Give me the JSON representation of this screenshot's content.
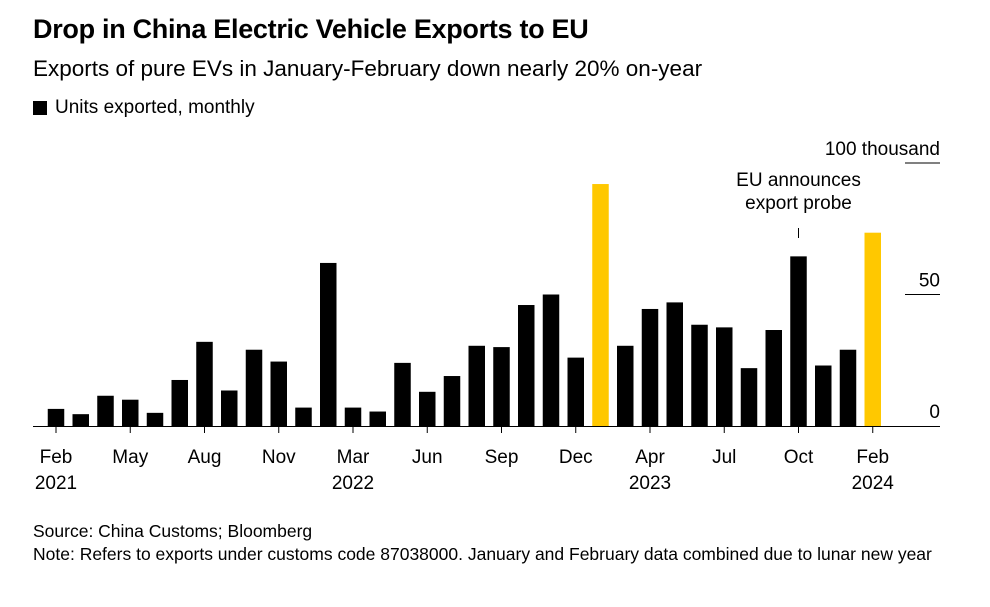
{
  "title": "Drop in China Electric Vehicle Exports to EU",
  "subtitle": "Exports of pure EVs in January-February down nearly 20% on-year",
  "legend_label": "Units exported, monthly",
  "source": "Source: China Customs; Bloomberg",
  "note": "Note: Refers to exports under customs code 87038000. January and February data combined due to lunar new year",
  "colors": {
    "bar": "#000000",
    "highlight": "#ffc800",
    "axis": "#000000"
  },
  "chart_data": {
    "type": "bar",
    "unit": "thousand units",
    "ylim": [
      0,
      100
    ],
    "yticks": [
      {
        "value": 0,
        "label": "0"
      },
      {
        "value": 50,
        "label": "50"
      },
      {
        "value": 100,
        "label": "100 thousand"
      }
    ],
    "categories": [
      "Feb 2021",
      "Mar 2021",
      "Apr 2021",
      "May 2021",
      "Jun 2021",
      "Jul 2021",
      "Aug 2021",
      "Sep 2021",
      "Oct 2021",
      "Nov 2021",
      "Dec 2021",
      "Jan 2022",
      "Mar 2022",
      "Apr 2022",
      "May 2022",
      "Jun 2022",
      "Jul 2022",
      "Aug 2022",
      "Sep 2022",
      "Oct 2022",
      "Nov 2022",
      "Dec 2022",
      "Jan 2023",
      "Mar 2023",
      "Apr 2023",
      "May 2023",
      "Jun 2023",
      "Jul 2023",
      "Aug 2023",
      "Sep 2023",
      "Oct 2023",
      "Nov 2023",
      "Dec 2023",
      "Feb 2024"
    ],
    "values": [
      6.5,
      4.5,
      11.5,
      10,
      5,
      17.5,
      32,
      13.5,
      29,
      24.5,
      7,
      62,
      7,
      5.5,
      24,
      13,
      19,
      30.5,
      30,
      46,
      50,
      26,
      92,
      30.5,
      44.5,
      47,
      38.5,
      37.5,
      22,
      36.5,
      64.5,
      23,
      29,
      73.5
    ],
    "highlighted": [
      22,
      33
    ],
    "xticks": [
      {
        "index": 0,
        "label": "Feb",
        "year": "2021"
      },
      {
        "index": 3,
        "label": "May",
        "year": ""
      },
      {
        "index": 6,
        "label": "Aug",
        "year": ""
      },
      {
        "index": 9,
        "label": "Nov",
        "year": ""
      },
      {
        "index": 12,
        "label": "Mar",
        "year": "2022"
      },
      {
        "index": 15,
        "label": "Jun",
        "year": ""
      },
      {
        "index": 18,
        "label": "Sep",
        "year": ""
      },
      {
        "index": 21,
        "label": "Dec",
        "year": ""
      },
      {
        "index": 24,
        "label": "Apr",
        "year": "2023"
      },
      {
        "index": 27,
        "label": "Jul",
        "year": ""
      },
      {
        "index": 30,
        "label": "Oct",
        "year": ""
      },
      {
        "index": 33,
        "label": "Feb",
        "year": "2024"
      }
    ],
    "annotation": {
      "index": 30,
      "lines": [
        "EU announces",
        "export probe"
      ]
    }
  }
}
